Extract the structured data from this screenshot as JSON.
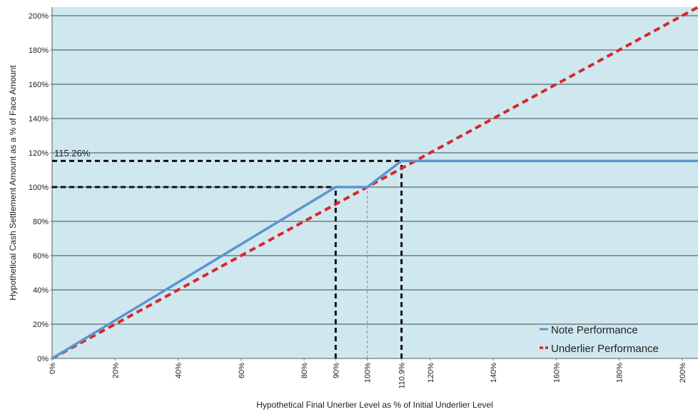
{
  "chart_data": {
    "type": "line",
    "title": "",
    "xlabel": "Hypothetical Final Unerlier Level as % of Initial Underlier Level",
    "ylabel": "Hypothetical Cash Settlement Amount as a % of Face Amount",
    "xlim": [
      0,
      205
    ],
    "ylim": [
      0,
      205
    ],
    "x_ticks": [
      0,
      20,
      40,
      60,
      80,
      90,
      100,
      110.9,
      120,
      140,
      160,
      180,
      200
    ],
    "x_tick_labels": [
      "0%",
      "20%",
      "40%",
      "60%",
      "80%",
      "90%",
      "100%",
      "110.9%",
      "120%",
      "140%",
      "160%",
      "180%",
      "200%"
    ],
    "y_ticks": [
      0,
      20,
      40,
      60,
      80,
      100,
      120,
      140,
      160,
      180,
      200
    ],
    "y_tick_labels": [
      "0%",
      "20%",
      "40%",
      "60%",
      "80%",
      "100%",
      "120%",
      "140%",
      "160%",
      "180%",
      "200%"
    ],
    "grid": "horizontal",
    "legend_position": "bottom-right",
    "series": [
      {
        "name": "Note Performance",
        "style": "solid",
        "color": "#5b95cf",
        "x": [
          0,
          90,
          100,
          110.9,
          205
        ],
        "y": [
          0,
          100,
          100,
          115.26,
          115.26
        ]
      },
      {
        "name": "Underlier Performance",
        "style": "dashed",
        "color": "#d9262c",
        "x": [
          0,
          205
        ],
        "y": [
          0,
          205
        ]
      }
    ],
    "reference_lines": [
      {
        "kind": "horizontal",
        "y": 100,
        "x_to": 90
      },
      {
        "kind": "horizontal",
        "y": 115.26,
        "x_to": 110.9
      },
      {
        "kind": "vertical",
        "x": 90,
        "y_to": 100
      },
      {
        "kind": "vertical",
        "x": 110.9,
        "y_to": 115.26
      }
    ],
    "minor_reference_lines": [
      {
        "kind": "vertical",
        "x": 100,
        "y_to": 100
      }
    ],
    "annotations": [
      {
        "text": "115.26%",
        "x": 0,
        "y": 115.26
      }
    ],
    "colors": {
      "plot_background": "#cfe8ef",
      "grid": "#404a4e",
      "reference": "#111111"
    }
  }
}
